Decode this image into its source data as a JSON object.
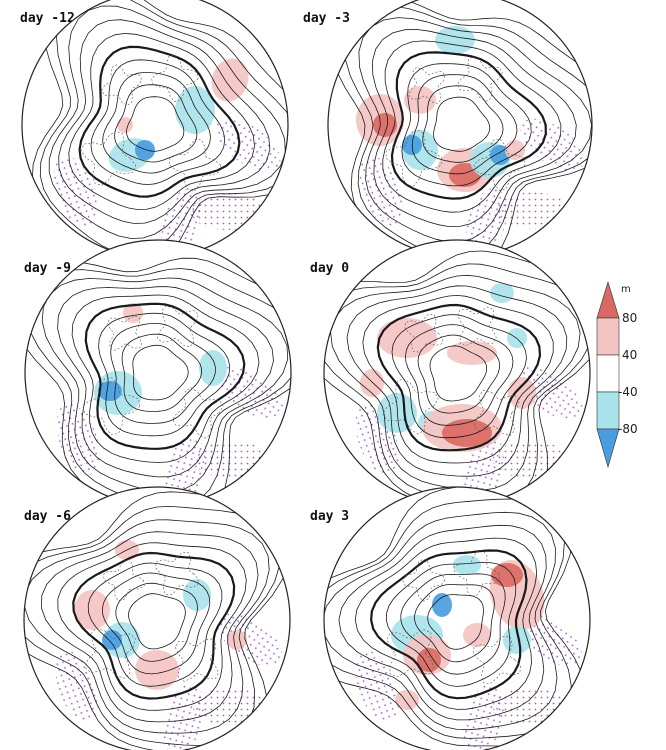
{
  "figure": {
    "panels": [
      {
        "label": "day -12"
      },
      {
        "label": "day -3"
      },
      {
        "label": "day -9"
      },
      {
        "label": "day 0"
      },
      {
        "label": "day -6"
      },
      {
        "label": "day 3"
      }
    ],
    "colorbar": {
      "unit": "m",
      "tick_labels": [
        "80",
        "40",
        "-40",
        "-80"
      ],
      "colors": {
        "strong_positive": "#d96a63",
        "positive": "#f4c4c2",
        "neutral": "#ffffff",
        "negative": "#a9e3ec",
        "strong_negative": "#4a9de0"
      }
    },
    "style": {
      "contour_color": "#1a1a1a",
      "coastline_color": "#555555",
      "stipple_color": "#8a3fd6",
      "map_border_color": "#222222"
    }
  }
}
